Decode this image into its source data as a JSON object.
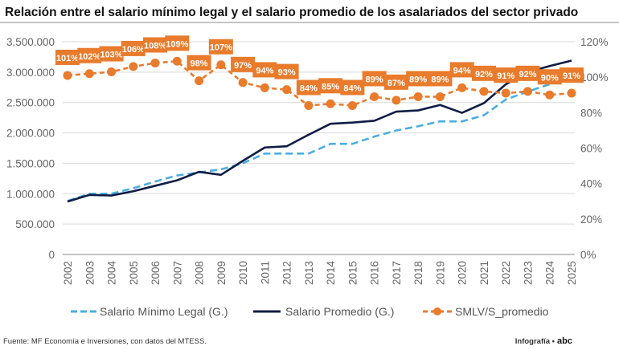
{
  "chart_data": {
    "type": "line",
    "title": "Relación entre el salario mínimo legal y el salario promedio de los asalariados del sector privado",
    "xlabel": "",
    "ylabel_left": "",
    "ylabel_right": "",
    "x": [
      "2002",
      "2003",
      "2004",
      "2005",
      "2006",
      "2007",
      "2008",
      "2009",
      "2010",
      "2011",
      "2012",
      "2013",
      "2014",
      "2015",
      "2016",
      "2017",
      "2018",
      "2019",
      "2020",
      "2021",
      "2022",
      "2023",
      "2024",
      "2025"
    ],
    "ylim_left": [
      0,
      3500000
    ],
    "ylim_right": [
      0,
      120
    ],
    "yticks_left": [
      "0",
      "500.000",
      "1.000.000",
      "1.500.000",
      "2.000.000",
      "2.500.000",
      "3.000.000",
      "3.500.000"
    ],
    "yticks_right": [
      "0%",
      "20%",
      "40%",
      "60%",
      "80%",
      "100%",
      "120%"
    ],
    "grid": true,
    "legend_position": "bottom",
    "series": [
      {
        "name": "Salario Mínimo Legal (G.)",
        "axis": "left",
        "color": "#4aaee0",
        "style": "dashed",
        "values": [
          880000,
          1000000,
          1000000,
          1090000,
          1200000,
          1300000,
          1350000,
          1400000,
          1500000,
          1660000,
          1660000,
          1660000,
          1820000,
          1820000,
          1940000,
          2040000,
          2110000,
          2190000,
          2190000,
          2290000,
          2550000,
          2680000,
          2800000,
          2900000
        ]
      },
      {
        "name": "Salario Promedio (G.)",
        "axis": "left",
        "color": "#0f1d44",
        "style": "solid",
        "values": [
          870000,
          980000,
          970000,
          1040000,
          1130000,
          1220000,
          1360000,
          1310000,
          1540000,
          1760000,
          1780000,
          1970000,
          2150000,
          2170000,
          2200000,
          2350000,
          2370000,
          2460000,
          2330000,
          2490000,
          2800000,
          3000000,
          3100000,
          3190000
        ]
      },
      {
        "name": "SMLV/S_promedio",
        "axis": "right",
        "color": "#e87b2c",
        "style": "dashed-markers",
        "values": [
          101,
          102,
          103,
          106,
          108,
          109,
          98,
          107,
          97,
          94,
          93,
          84,
          85,
          84,
          89,
          87,
          89,
          89,
          94,
          92,
          91,
          92,
          90,
          91
        ],
        "labels": [
          "101%",
          "102%",
          "103%",
          "106%",
          "108%",
          "109%",
          "98%",
          "107%",
          "97%",
          "94%",
          "93%",
          "84%",
          "85%",
          "84%",
          "89%",
          "87%",
          "89%",
          "89%",
          "94%",
          "92%",
          "91%",
          "92%",
          "90%",
          "91%"
        ]
      }
    ]
  },
  "footer": {
    "source": "Fuente: MF Economía e Inversiones, con datos del MTESS.",
    "credit": "Infografía •",
    "brand": "abc"
  }
}
